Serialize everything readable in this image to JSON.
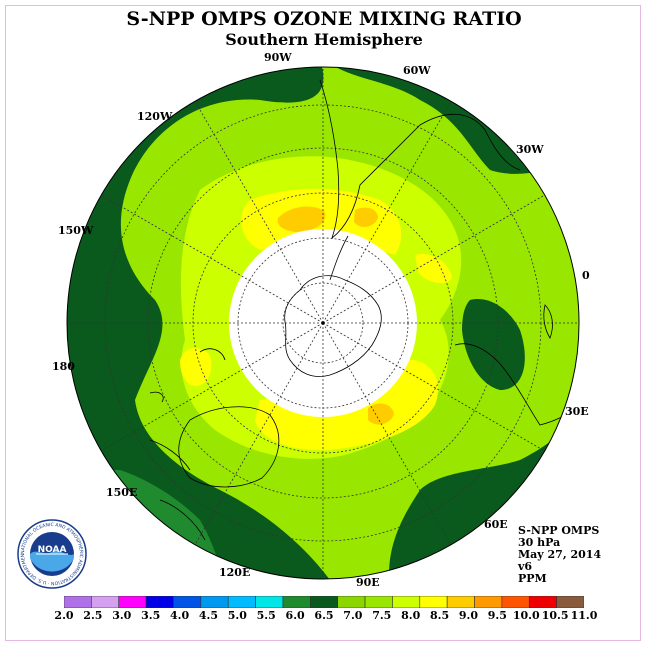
{
  "title": "S-NPP OMPS OZONE MIXING RATIO",
  "subtitle": "Southern Hemisphere",
  "longitude_labels": {
    "w90": "90W",
    "w60": "60W",
    "w30": "30W",
    "zero": "0",
    "w120": "120W",
    "w150": "150W",
    "lon180": "180",
    "e30": "30E",
    "e60": "60E",
    "e90": "90E",
    "e120": "120E",
    "e150": "150E"
  },
  "info": {
    "instrument": "S-NPP OMPS",
    "level": "30 hPa",
    "date": "May 27, 2014",
    "version": "v6",
    "units": "PPM"
  },
  "logo": {
    "text": "NOAA",
    "ring": "NATIONAL OCEANIC AND ATMOSPHERIC ADMINISTRATION · U.S. DEPARTMENT OF COMMERCE ·"
  },
  "colors": {
    "bg_field": "#99e600",
    "dark_green": "#0a5a1e",
    "mid_green": "#1f8a2e",
    "yellow_green": "#ccff00",
    "yellow": "#ffff00",
    "orange_yellow": "#ffcc00",
    "no_data": "#ffffff"
  },
  "colorbar": {
    "ticks": [
      "2.0",
      "2.5",
      "3.0",
      "3.5",
      "4.0",
      "4.5",
      "5.0",
      "5.5",
      "6.0",
      "6.5",
      "7.0",
      "7.5",
      "8.0",
      "8.5",
      "9.0",
      "9.5",
      "10.0",
      "10.5",
      "11.0"
    ],
    "colors": [
      "#b070e8",
      "#d6a0f0",
      "#ff00ff",
      "#0000e6",
      "#0055e6",
      "#0099f0",
      "#00bbff",
      "#00e6e6",
      "#1f8a2e",
      "#0a5a1e",
      "#8cd600",
      "#99e600",
      "#ccff00",
      "#ffff00",
      "#ffcc00",
      "#ff9900",
      "#ff5500",
      "#ee0000",
      "#8a5a3c"
    ]
  }
}
